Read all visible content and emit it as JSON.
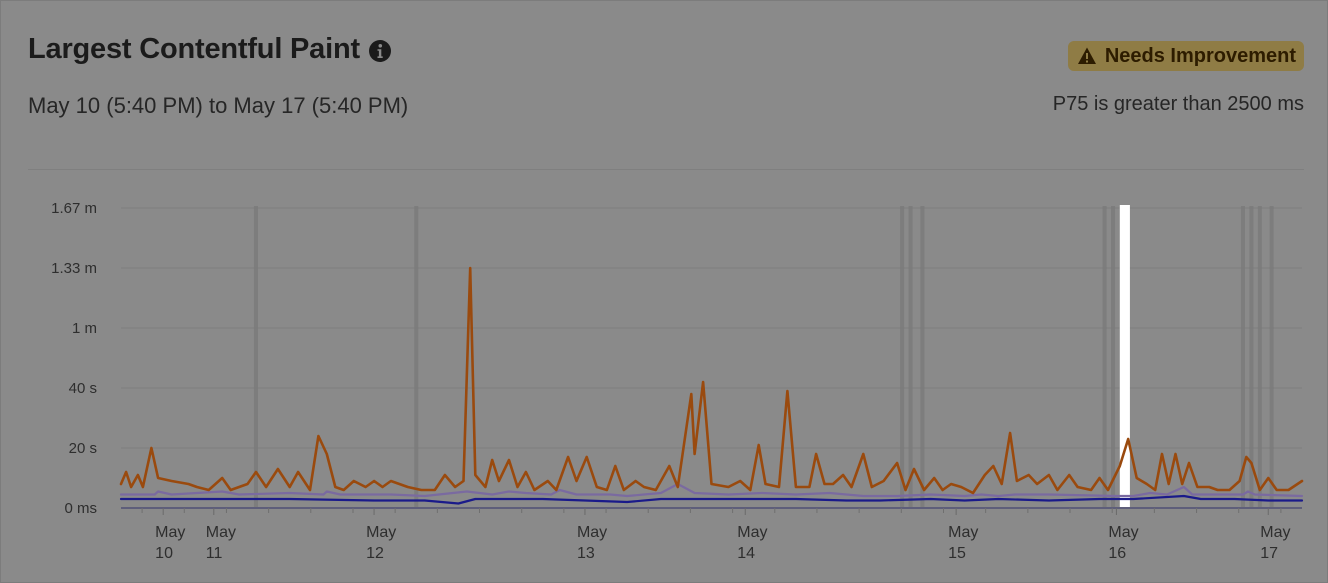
{
  "header": {
    "title": "Largest Contentful Paint",
    "date_range": "May 10 (5:40 PM) to May 17 (5:40 PM)",
    "status_badge": "Needs Improvement",
    "threshold_text": "P75 is greater than 2500 ms"
  },
  "icons": {
    "info": "info-icon",
    "warning": "warning-icon"
  },
  "colors": {
    "p75": "#9a4a0e",
    "p50": "#7a6aa0",
    "p25": "#1a1a8a",
    "badge_bg": "#8f7c45",
    "gridline": "#7d7d7d",
    "event_marker": "#7a7a7a"
  },
  "chart_data": {
    "type": "line",
    "title": "Largest Contentful Paint",
    "y_unit": "seconds",
    "ylim": [
      0,
      100
    ],
    "yticks": [
      {
        "value": 0,
        "label": "0 ms"
      },
      {
        "value": 20,
        "label": "20 s"
      },
      {
        "value": 40,
        "label": "40 s"
      },
      {
        "value": 60,
        "label": "1 m"
      },
      {
        "value": 80,
        "label": "1.33 m"
      },
      {
        "value": 100,
        "label": "1.67 m"
      }
    ],
    "xlim": [
      0,
      7
    ],
    "xticks": [
      {
        "value": 0.25,
        "label_top": "May",
        "label_bottom": "10"
      },
      {
        "value": 0.55,
        "label_top": "May",
        "label_bottom": "11"
      },
      {
        "value": 1.5,
        "label_top": "May",
        "label_bottom": "12"
      },
      {
        "value": 2.75,
        "label_top": "May",
        "label_bottom": "13"
      },
      {
        "value": 3.7,
        "label_top": "May",
        "label_bottom": "14"
      },
      {
        "value": 4.95,
        "label_top": "May",
        "label_bottom": "15"
      },
      {
        "value": 5.9,
        "label_top": "May",
        "label_bottom": "16"
      },
      {
        "value": 6.8,
        "label_top": "May",
        "label_bottom": "17"
      }
    ],
    "event_markers": [
      0.8,
      1.75,
      4.63,
      4.68,
      4.75,
      5.83,
      5.88,
      6.65,
      6.7,
      6.75,
      6.82
    ],
    "highlight_window": [
      5.92,
      5.98
    ],
    "grid": true,
    "series": [
      {
        "key": "p75",
        "points": [
          [
            0,
            8
          ],
          [
            0.03,
            12
          ],
          [
            0.06,
            7
          ],
          [
            0.1,
            11
          ],
          [
            0.13,
            7
          ],
          [
            0.18,
            20
          ],
          [
            0.22,
            10
          ],
          [
            0.3,
            9
          ],
          [
            0.4,
            8
          ],
          [
            0.45,
            7
          ],
          [
            0.52,
            6
          ],
          [
            0.6,
            10
          ],
          [
            0.65,
            6
          ],
          [
            0.75,
            8
          ],
          [
            0.8,
            12
          ],
          [
            0.86,
            7
          ],
          [
            0.93,
            13
          ],
          [
            1.0,
            7
          ],
          [
            1.05,
            12
          ],
          [
            1.12,
            6
          ],
          [
            1.17,
            24
          ],
          [
            1.22,
            18
          ],
          [
            1.27,
            7
          ],
          [
            1.32,
            6
          ],
          [
            1.38,
            9
          ],
          [
            1.45,
            7
          ],
          [
            1.5,
            9
          ],
          [
            1.55,
            7
          ],
          [
            1.6,
            9
          ],
          [
            1.7,
            7
          ],
          [
            1.78,
            6
          ],
          [
            1.86,
            6
          ],
          [
            1.92,
            11
          ],
          [
            1.98,
            7
          ],
          [
            2.03,
            9
          ],
          [
            2.07,
            80
          ],
          [
            2.1,
            11
          ],
          [
            2.16,
            7
          ],
          [
            2.2,
            16
          ],
          [
            2.24,
            9
          ],
          [
            2.3,
            16
          ],
          [
            2.35,
            7
          ],
          [
            2.4,
            12
          ],
          [
            2.45,
            6
          ],
          [
            2.53,
            9
          ],
          [
            2.58,
            6
          ],
          [
            2.65,
            17
          ],
          [
            2.7,
            9
          ],
          [
            2.76,
            17
          ],
          [
            2.82,
            7
          ],
          [
            2.88,
            6
          ],
          [
            2.93,
            14
          ],
          [
            2.98,
            6
          ],
          [
            3.05,
            9
          ],
          [
            3.1,
            7
          ],
          [
            3.17,
            6
          ],
          [
            3.25,
            14
          ],
          [
            3.3,
            7
          ],
          [
            3.38,
            38
          ],
          [
            3.4,
            18
          ],
          [
            3.45,
            42
          ],
          [
            3.5,
            8
          ],
          [
            3.6,
            7
          ],
          [
            3.67,
            9
          ],
          [
            3.73,
            6
          ],
          [
            3.78,
            21
          ],
          [
            3.82,
            8
          ],
          [
            3.9,
            7
          ],
          [
            3.95,
            39
          ],
          [
            4.0,
            7
          ],
          [
            4.08,
            7
          ],
          [
            4.12,
            18
          ],
          [
            4.17,
            8
          ],
          [
            4.22,
            8
          ],
          [
            4.28,
            11
          ],
          [
            4.33,
            7
          ],
          [
            4.4,
            18
          ],
          [
            4.45,
            7
          ],
          [
            4.52,
            9
          ],
          [
            4.6,
            15
          ],
          [
            4.65,
            6
          ],
          [
            4.7,
            13
          ],
          [
            4.76,
            6
          ],
          [
            4.82,
            10
          ],
          [
            4.87,
            6
          ],
          [
            4.92,
            8
          ],
          [
            4.98,
            7
          ],
          [
            5.05,
            5
          ],
          [
            5.12,
            11
          ],
          [
            5.17,
            14
          ],
          [
            5.22,
            8
          ],
          [
            5.27,
            25
          ],
          [
            5.31,
            9
          ],
          [
            5.38,
            11
          ],
          [
            5.43,
            8
          ],
          [
            5.5,
            11
          ],
          [
            5.55,
            6
          ],
          [
            5.62,
            11
          ],
          [
            5.67,
            7
          ],
          [
            5.75,
            6
          ],
          [
            5.8,
            10
          ],
          [
            5.85,
            6
          ],
          [
            5.92,
            14
          ],
          [
            5.97,
            23
          ],
          [
            6.02,
            10
          ],
          [
            6.08,
            8
          ],
          [
            6.13,
            6
          ],
          [
            6.17,
            18
          ],
          [
            6.21,
            8
          ],
          [
            6.25,
            18
          ],
          [
            6.29,
            8
          ],
          [
            6.33,
            15
          ],
          [
            6.38,
            7
          ],
          [
            6.45,
            7
          ],
          [
            6.5,
            6
          ],
          [
            6.57,
            6
          ],
          [
            6.63,
            9
          ],
          [
            6.67,
            17
          ],
          [
            6.7,
            15
          ],
          [
            6.75,
            6
          ],
          [
            6.8,
            10
          ],
          [
            6.85,
            6
          ],
          [
            6.92,
            6
          ],
          [
            7.0,
            9
          ]
        ]
      },
      {
        "key": "p50",
        "points": [
          [
            0,
            4.5
          ],
          [
            0.2,
            4.5
          ],
          [
            0.22,
            5.5
          ],
          [
            0.3,
            4.5
          ],
          [
            0.6,
            5.5
          ],
          [
            0.7,
            4.5
          ],
          [
            1.0,
            5
          ],
          [
            1.2,
            4.5
          ],
          [
            1.22,
            5.5
          ],
          [
            1.3,
            4.5
          ],
          [
            1.6,
            4.5
          ],
          [
            1.8,
            4
          ],
          [
            2.05,
            5.5
          ],
          [
            2.2,
            4.5
          ],
          [
            2.3,
            5.5
          ],
          [
            2.4,
            5
          ],
          [
            2.55,
            4.5
          ],
          [
            2.6,
            6
          ],
          [
            2.7,
            4.5
          ],
          [
            2.9,
            4.5
          ],
          [
            3.0,
            4
          ],
          [
            3.1,
            4.5
          ],
          [
            3.2,
            5
          ],
          [
            3.3,
            8
          ],
          [
            3.4,
            5
          ],
          [
            3.6,
            4.5
          ],
          [
            3.8,
            5
          ],
          [
            4.0,
            4.5
          ],
          [
            4.2,
            5
          ],
          [
            4.4,
            4
          ],
          [
            4.6,
            4
          ],
          [
            4.8,
            4.5
          ],
          [
            5.0,
            4
          ],
          [
            5.1,
            4.5
          ],
          [
            5.2,
            4
          ],
          [
            5.3,
            4.5
          ],
          [
            5.5,
            4.5
          ],
          [
            5.9,
            4
          ],
          [
            6.0,
            4
          ],
          [
            6.1,
            5
          ],
          [
            6.2,
            4.5
          ],
          [
            6.3,
            7
          ],
          [
            6.35,
            4.5
          ],
          [
            6.5,
            4.5
          ],
          [
            6.65,
            4.5
          ],
          [
            6.68,
            5.5
          ],
          [
            6.72,
            4.5
          ],
          [
            7.0,
            4
          ]
        ]
      },
      {
        "key": "p25",
        "points": [
          [
            0,
            3
          ],
          [
            0.3,
            3
          ],
          [
            0.5,
            3
          ],
          [
            1.0,
            3
          ],
          [
            1.5,
            2.5
          ],
          [
            1.8,
            2.5
          ],
          [
            2.0,
            1.5
          ],
          [
            2.1,
            3
          ],
          [
            2.5,
            3
          ],
          [
            3.0,
            2
          ],
          [
            3.2,
            3
          ],
          [
            3.5,
            3
          ],
          [
            3.8,
            3
          ],
          [
            4.0,
            3
          ],
          [
            4.3,
            2.5
          ],
          [
            4.5,
            2.5
          ],
          [
            4.8,
            3
          ],
          [
            5.0,
            2.5
          ],
          [
            5.2,
            3
          ],
          [
            5.5,
            2.5
          ],
          [
            5.8,
            3
          ],
          [
            6.0,
            3
          ],
          [
            6.3,
            4
          ],
          [
            6.4,
            3
          ],
          [
            6.6,
            3
          ],
          [
            6.8,
            2.5
          ],
          [
            7.0,
            2.5
          ]
        ]
      }
    ]
  }
}
